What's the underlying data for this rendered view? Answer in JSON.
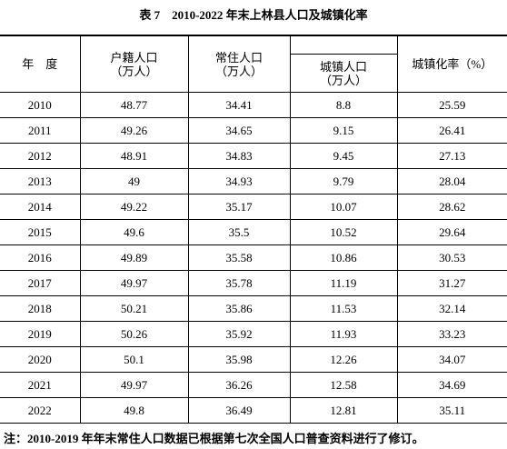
{
  "title": "表 7　2010-2022 年末上林县人口及城镇化率",
  "header": {
    "year": "年　度",
    "registered": [
      "户籍人口",
      "（万人）"
    ],
    "resident": [
      "常住人口",
      "（万人）"
    ],
    "urban": [
      "城镇人口",
      "（万人）"
    ],
    "rate": "城镇化率（%）"
  },
  "table": {
    "rows": [
      [
        "2010",
        "48.77",
        "34.41",
        "8.8",
        "25.59"
      ],
      [
        "2011",
        "49.26",
        "34.65",
        "9.15",
        "26.41"
      ],
      [
        "2012",
        "48.91",
        "34.83",
        "9.45",
        "27.13"
      ],
      [
        "2013",
        "49",
        "34.93",
        "9.79",
        "28.04"
      ],
      [
        "2014",
        "49.22",
        "35.17",
        "10.07",
        "28.62"
      ],
      [
        "2015",
        "49.6",
        "35.5",
        "10.52",
        "29.64"
      ],
      [
        "2016",
        "49.89",
        "35.58",
        "10.86",
        "30.53"
      ],
      [
        "2017",
        "49.97",
        "35.78",
        "11.19",
        "31.27"
      ],
      [
        "2018",
        "50.21",
        "35.86",
        "11.53",
        "32.14"
      ],
      [
        "2019",
        "50.26",
        "35.92",
        "11.93",
        "33.23"
      ],
      [
        "2020",
        "50.1",
        "35.98",
        "12.26",
        "34.07"
      ],
      [
        "2021",
        "49.97",
        "36.26",
        "12.58",
        "34.69"
      ],
      [
        "2022",
        "49.8",
        "36.49",
        "12.81",
        "35.11"
      ]
    ]
  },
  "note": "注：2010-2019 年年末常住人口数据已根据第七次全国人口普查资料进行了修订。"
}
